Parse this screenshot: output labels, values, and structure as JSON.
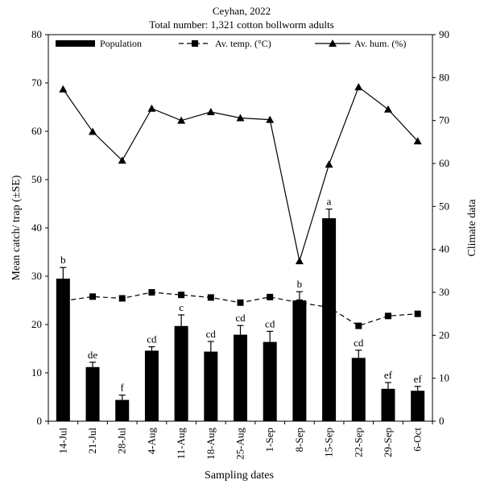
{
  "chart_data": {
    "type": "bar",
    "title": "Ceyhan, 2022",
    "subtitle": "Total number: 1,321 cotton bollworm adults",
    "xlabel": "Sampling dates",
    "ylabel": "Mean catch/ trap (±SE)",
    "y2label": "Climate data",
    "ylim": [
      0,
      80
    ],
    "y2lim": [
      0,
      90
    ],
    "yticks": [
      "0",
      "10",
      "20",
      "30",
      "40",
      "50",
      "60",
      "70",
      "80"
    ],
    "y2ticks": [
      "0",
      "10",
      "20",
      "30",
      "40",
      "50",
      "60",
      "70",
      "80",
      "90"
    ],
    "grid": false,
    "legend_position": "top",
    "categories": [
      "14-Jul",
      "21-Jul",
      "28-Jul",
      "4-Aug",
      "11-Aug",
      "18-Aug",
      "25-Aug",
      "1-Sep",
      "8-Sep",
      "15-Sep",
      "22-Sep",
      "29-Sep",
      "6-Oct"
    ],
    "series": [
      {
        "name": "Population",
        "kind": "bar",
        "axis": "left",
        "values": [
          29.5,
          11.2,
          4.4,
          14.6,
          19.7,
          14.4,
          17.9,
          16.4,
          25.0,
          42.0,
          13.1,
          6.7,
          6.3
        ],
        "errors": [
          2.3,
          1.0,
          1.0,
          0.8,
          2.3,
          2.1,
          1.9,
          2.2,
          1.8,
          1.9,
          1.6,
          1.3,
          0.9
        ],
        "significance": [
          "b",
          "de",
          "f",
          "cd",
          "c",
          "cd",
          "cd",
          "cd",
          "b",
          "a",
          "cd",
          "ef",
          "ef"
        ]
      },
      {
        "name": "Av. temp. (°C)",
        "kind": "line",
        "style": "dashed",
        "marker": "square",
        "axis": "right",
        "values": [
          28.0,
          29.0,
          28.6,
          30.0,
          29.4,
          28.8,
          27.6,
          28.9,
          27.6,
          26.5,
          22.2,
          24.5,
          25.0
        ]
      },
      {
        "name": "Av. hum. (%)",
        "kind": "line",
        "style": "solid",
        "marker": "triangle",
        "axis": "right",
        "values": [
          77.3,
          67.4,
          60.7,
          72.8,
          70.0,
          72.0,
          70.6,
          70.2,
          37.3,
          59.8,
          77.8,
          72.6,
          65.2
        ]
      }
    ]
  }
}
